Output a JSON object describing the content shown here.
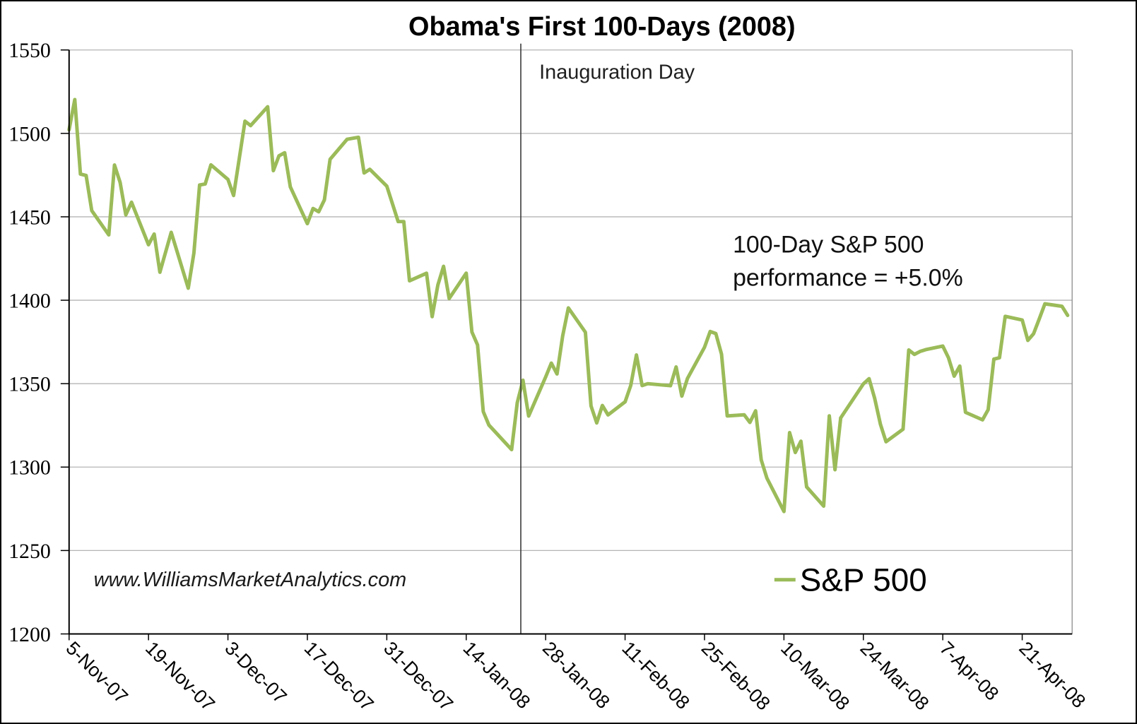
{
  "title": "Obama's First 100-Days (2008)",
  "watermark": "www.WilliamsMarketAnalytics.com",
  "annotation": {
    "line1": "100-Day S&P 500",
    "line2": "performance = +5.0%"
  },
  "inauguration": {
    "label": "Inauguration Day",
    "date": "2008-01-23"
  },
  "legend": {
    "label": "S&P 500",
    "position": "bottom-right-inside"
  },
  "colors": {
    "line": "#9BBB59",
    "grid": "#B5B5B5",
    "axis": "#000000",
    "inauguration_line": "#3a3a3a",
    "plot_right_border": "#8C8C8C",
    "background": "#FFFFFF"
  },
  "chart_data": {
    "type": "line",
    "title": "Obama's First 100-Days (2008)",
    "series_name": "S&P 500",
    "xlabel": "",
    "ylabel": "",
    "ylim": [
      1200,
      1550
    ],
    "y_ticks": [
      1550,
      1500,
      1450,
      1400,
      1350,
      1300,
      1250,
      1200
    ],
    "grid": "horizontal",
    "legend_position": "inside bottom right",
    "x_range": [
      "2007-11-05",
      "2008-04-29"
    ],
    "x_ticks": [
      {
        "label": "5-Nov-07",
        "date": "2007-11-05"
      },
      {
        "label": "19-Nov-07",
        "date": "2007-11-19"
      },
      {
        "label": "3-Dec-07",
        "date": "2007-12-03"
      },
      {
        "label": "17-Dec-07",
        "date": "2007-12-17"
      },
      {
        "label": "31-Dec-07",
        "date": "2007-12-31"
      },
      {
        "label": "14-Jan-08",
        "date": "2008-01-14"
      },
      {
        "label": "28-Jan-08",
        "date": "2008-01-28"
      },
      {
        "label": "11-Feb-08",
        "date": "2008-02-11"
      },
      {
        "label": "25-Feb-08",
        "date": "2008-02-25"
      },
      {
        "label": "10-Mar-08",
        "date": "2008-03-10"
      },
      {
        "label": "24-Mar-08",
        "date": "2008-03-24"
      },
      {
        "label": "7-Apr-08",
        "date": "2008-04-07"
      },
      {
        "label": "21-Apr-08",
        "date": "2008-04-21"
      }
    ],
    "dates": [
      "2007-11-05",
      "2007-11-06",
      "2007-11-07",
      "2007-11-08",
      "2007-11-09",
      "2007-11-12",
      "2007-11-13",
      "2007-11-14",
      "2007-11-15",
      "2007-11-16",
      "2007-11-19",
      "2007-11-20",
      "2007-11-21",
      "2007-11-23",
      "2007-11-26",
      "2007-11-27",
      "2007-11-28",
      "2007-11-29",
      "2007-11-30",
      "2007-12-03",
      "2007-12-04",
      "2007-12-05",
      "2007-12-06",
      "2007-12-07",
      "2007-12-10",
      "2007-12-11",
      "2007-12-12",
      "2007-12-13",
      "2007-12-14",
      "2007-12-17",
      "2007-12-18",
      "2007-12-19",
      "2007-12-20",
      "2007-12-21",
      "2007-12-24",
      "2007-12-26",
      "2007-12-27",
      "2007-12-28",
      "2007-12-31",
      "2008-01-02",
      "2008-01-03",
      "2008-01-04",
      "2008-01-07",
      "2008-01-08",
      "2008-01-09",
      "2008-01-10",
      "2008-01-11",
      "2008-01-14",
      "2008-01-15",
      "2008-01-16",
      "2008-01-17",
      "2008-01-18",
      "2008-01-22",
      "2008-01-23",
      "2008-01-24",
      "2008-01-25",
      "2008-01-28",
      "2008-01-29",
      "2008-01-30",
      "2008-01-31",
      "2008-02-01",
      "2008-02-04",
      "2008-02-05",
      "2008-02-06",
      "2008-02-07",
      "2008-02-08",
      "2008-02-11",
      "2008-02-12",
      "2008-02-13",
      "2008-02-14",
      "2008-02-15",
      "2008-02-19",
      "2008-02-20",
      "2008-02-21",
      "2008-02-22",
      "2008-02-25",
      "2008-02-26",
      "2008-02-27",
      "2008-02-28",
      "2008-02-29",
      "2008-03-03",
      "2008-03-04",
      "2008-03-05",
      "2008-03-06",
      "2008-03-07",
      "2008-03-10",
      "2008-03-11",
      "2008-03-12",
      "2008-03-13",
      "2008-03-14",
      "2008-03-17",
      "2008-03-18",
      "2008-03-19",
      "2008-03-20",
      "2008-03-24",
      "2008-03-25",
      "2008-03-26",
      "2008-03-27",
      "2008-03-28",
      "2008-03-31",
      "2008-04-01",
      "2008-04-02",
      "2008-04-03",
      "2008-04-04",
      "2008-04-07",
      "2008-04-08",
      "2008-04-09",
      "2008-04-10",
      "2008-04-11",
      "2008-04-14",
      "2008-04-15",
      "2008-04-16",
      "2008-04-17",
      "2008-04-18",
      "2008-04-21",
      "2008-04-22",
      "2008-04-23",
      "2008-04-24",
      "2008-04-25",
      "2008-04-28",
      "2008-04-29"
    ],
    "closes": [
      1502.17,
      1520.27,
      1475.62,
      1474.77,
      1453.7,
      1439.18,
      1481.05,
      1470.58,
      1451.15,
      1458.74,
      1433.27,
      1439.7,
      1416.77,
      1440.7,
      1407.22,
      1428.23,
      1469.02,
      1469.72,
      1481.14,
      1472.42,
      1462.79,
      1485.01,
      1507.34,
      1504.66,
      1515.96,
      1477.65,
      1486.59,
      1488.41,
      1467.95,
      1445.9,
      1454.98,
      1453.0,
      1460.12,
      1484.46,
      1496.45,
      1497.66,
      1476.27,
      1478.49,
      1468.36,
      1447.16,
      1447.16,
      1411.63,
      1416.18,
      1390.19,
      1409.13,
      1420.33,
      1401.02,
      1416.25,
      1380.95,
      1373.2,
      1333.25,
      1325.19,
      1310.5,
      1338.6,
      1352.07,
      1330.61,
      1353.96,
      1362.3,
      1355.81,
      1378.55,
      1395.42,
      1380.82,
      1336.64,
      1326.45,
      1336.91,
      1331.29,
      1339.13,
      1348.86,
      1367.21,
      1348.86,
      1349.99,
      1348.78,
      1360.03,
      1342.53,
      1353.11,
      1371.8,
      1381.29,
      1380.02,
      1367.68,
      1330.63,
      1331.34,
      1326.75,
      1333.7,
      1304.34,
      1293.37,
      1273.37,
      1320.65,
      1308.77,
      1315.48,
      1288.14,
      1276.6,
      1330.74,
      1298.42,
      1329.51,
      1349.88,
      1352.99,
      1341.13,
      1325.76,
      1315.22,
      1322.7,
      1370.18,
      1367.53,
      1369.31,
      1370.4,
      1372.54,
      1365.54,
      1354.49,
      1360.55,
      1332.83,
      1328.32,
      1334.43,
      1364.71,
      1365.56,
      1390.33,
      1388.17,
      1375.94,
      1379.93,
      1388.82,
      1397.84,
      1396.37,
      1390.94
    ]
  }
}
